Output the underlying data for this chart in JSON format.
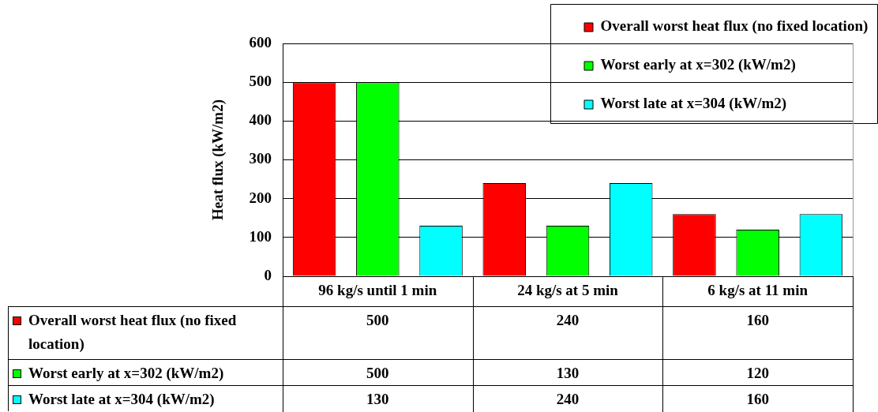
{
  "chart_data": {
    "type": "bar",
    "ylabel": "Heat flux (kW/m2)",
    "categories": [
      "96 kg/s until 1 min",
      "24 kg/s at 5 min",
      "6 kg/s at 11 min"
    ],
    "series": [
      {
        "name": "Overall worst heat flux (no fixed location)",
        "color": "#ff0000",
        "values": [
          500,
          240,
          160
        ]
      },
      {
        "name": "Worst early at x=302 (kW/m2)",
        "color": "#00ff00",
        "values": [
          500,
          130,
          120
        ]
      },
      {
        "name": "Worst late at x=304 (kW/m2)",
        "color": "#00ffff",
        "values": [
          130,
          240,
          160
        ]
      }
    ],
    "ylim": [
      0,
      600
    ],
    "yticks": [
      0,
      100,
      200,
      300,
      400,
      500,
      600
    ],
    "grid": "y",
    "legend": "top right",
    "data_labels": true
  }
}
